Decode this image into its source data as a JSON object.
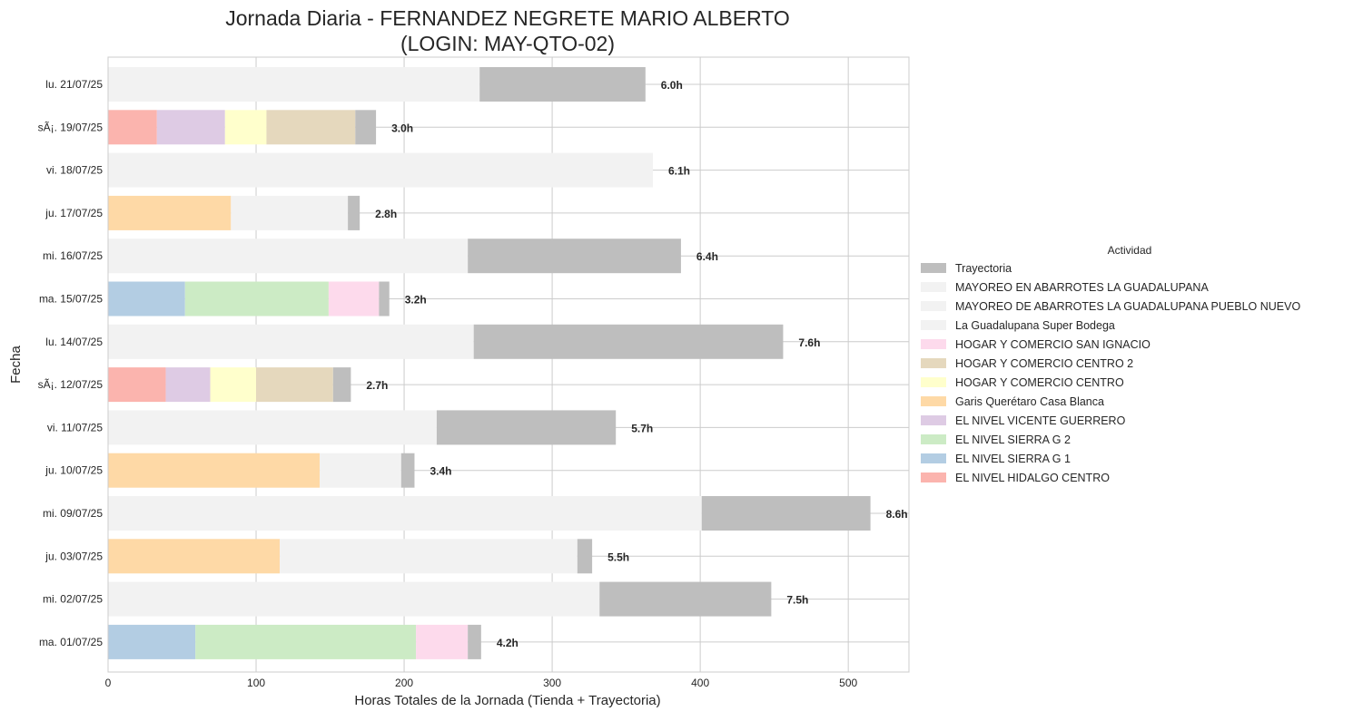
{
  "chart_data": {
    "type": "bar",
    "orientation": "horizontal",
    "stacked": true,
    "title_line1": "Jornada Diaria - FERNANDEZ NEGRETE MARIO ALBERTO",
    "title_line2": "(LOGIN: MAY-QTO-02)",
    "xlabel": "Horas Totales de la Jornada (Tienda + Trayectoria)",
    "ylabel": "Fecha",
    "xlim": [
      0,
      541
    ],
    "xticks": [
      0,
      100,
      200,
      300,
      400,
      500
    ],
    "grid": true,
    "legend_title": "Actividad",
    "legend_position": "center-right",
    "categories": [
      "lu. 21/07/25",
      "sÃ¡. 19/07/25",
      "vi. 18/07/25",
      "ju. 17/07/25",
      "mi. 16/07/25",
      "ma. 15/07/25",
      "lu. 14/07/25",
      "sÃ¡. 12/07/25",
      "vi. 11/07/25",
      "ju. 10/07/25",
      "mi. 09/07/25",
      "ju. 03/07/25",
      "mi. 02/07/25",
      "ma. 01/07/25"
    ],
    "totals": [
      "6.0h",
      "3.0h",
      "6.1h",
      "2.8h",
      "6.4h",
      "3.2h",
      "7.6h",
      "2.7h",
      "5.7h",
      "3.4h",
      "8.6h",
      "5.5h",
      "7.5h",
      "4.2h"
    ],
    "series": [
      {
        "name": "EL NIVEL HIDALGO CENTRO",
        "color": "#fbb4ae",
        "values": [
          0,
          33,
          0,
          0,
          0,
          0,
          0,
          39,
          0,
          0,
          0,
          0,
          0,
          0
        ]
      },
      {
        "name": "EL NIVEL SIERRA G 1",
        "color": "#b3cde3",
        "values": [
          0,
          0,
          0,
          0,
          0,
          52,
          0,
          0,
          0,
          0,
          0,
          0,
          0,
          59
        ]
      },
      {
        "name": "EL NIVEL SIERRA G 2",
        "color": "#ccebc5",
        "values": [
          0,
          0,
          0,
          0,
          0,
          97,
          0,
          0,
          0,
          0,
          0,
          0,
          0,
          149
        ]
      },
      {
        "name": "EL NIVEL VICENTE GUERRERO",
        "color": "#decbe4",
        "values": [
          0,
          46,
          0,
          0,
          0,
          0,
          0,
          30,
          0,
          0,
          0,
          0,
          0,
          0
        ]
      },
      {
        "name": "Garis Querétaro Casa Blanca",
        "color": "#fed9a6",
        "values": [
          0,
          0,
          0,
          83,
          0,
          0,
          0,
          0,
          0,
          143,
          0,
          116,
          0,
          0
        ]
      },
      {
        "name": "HOGAR Y COMERCIO CENTRO",
        "color": "#ffffcc",
        "values": [
          0,
          28,
          0,
          0,
          0,
          0,
          0,
          31,
          0,
          0,
          0,
          0,
          0,
          0
        ]
      },
      {
        "name": "HOGAR Y COMERCIO CENTRO 2",
        "color": "#e5d8bd",
        "values": [
          0,
          60,
          0,
          0,
          0,
          0,
          0,
          52,
          0,
          0,
          0,
          0,
          0,
          0
        ]
      },
      {
        "name": "HOGAR Y COMERCIO SAN IGNACIO",
        "color": "#fddaec",
        "values": [
          0,
          0,
          0,
          0,
          0,
          34,
          0,
          0,
          0,
          0,
          0,
          0,
          0,
          35
        ]
      },
      {
        "name": "La Guadalupana Super Bodega",
        "color": "#f2f2f2",
        "values": [
          0,
          0,
          0,
          0,
          243,
          0,
          0,
          0,
          0,
          0,
          0,
          0,
          0,
          0
        ]
      },
      {
        "name": "MAYOREO DE ABARROTES LA GUADALUPANA PUEBLO NUEVO",
        "color": "#f2f2f2",
        "values": [
          0,
          0,
          0,
          0,
          0,
          0,
          0,
          0,
          0,
          0,
          0,
          201,
          0,
          0
        ]
      },
      {
        "name": "MAYOREO EN ABARROTES LA GUADALUPANA",
        "color": "#f2f2f2",
        "values": [
          251,
          0,
          368,
          79,
          0,
          0,
          247,
          0,
          222,
          55,
          401,
          0,
          332,
          0
        ]
      },
      {
        "name": "Trayectoria",
        "color": "#bebebe",
        "values": [
          112,
          14,
          0,
          8,
          144,
          7,
          209,
          12,
          121,
          9,
          114,
          10,
          116,
          9
        ]
      }
    ],
    "legend_order": [
      "Trayectoria",
      "MAYOREO EN ABARROTES LA GUADALUPANA",
      "MAYOREO DE ABARROTES LA GUADALUPANA PUEBLO NUEVO",
      "La Guadalupana Super Bodega",
      "HOGAR Y COMERCIO SAN IGNACIO",
      "HOGAR Y COMERCIO CENTRO 2",
      "HOGAR Y COMERCIO CENTRO",
      "Garis Querétaro Casa Blanca",
      "EL NIVEL VICENTE GUERRERO",
      "EL NIVEL SIERRA G 2",
      "EL NIVEL SIERRA G 1",
      "EL NIVEL HIDALGO CENTRO"
    ]
  }
}
